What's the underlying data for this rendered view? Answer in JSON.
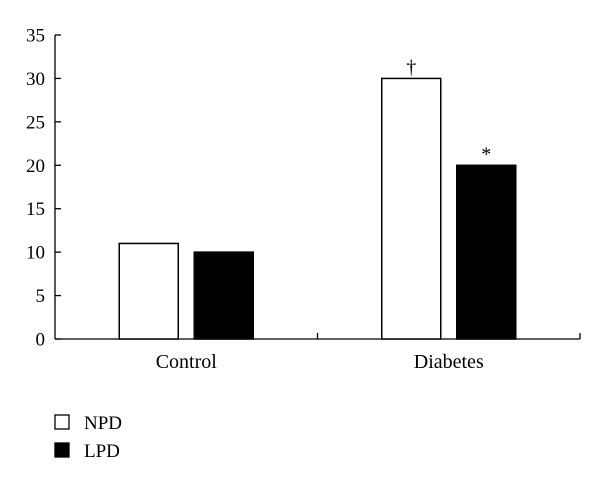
{
  "chart_data": {
    "type": "bar",
    "title": "",
    "xlabel": "",
    "ylabel": "",
    "categories": [
      "Control",
      "Diabetes"
    ],
    "series": [
      {
        "name": "NPD",
        "values": [
          11,
          30
        ],
        "color": "#ffffff",
        "stroke": "#000000"
      },
      {
        "name": "LPD",
        "values": [
          10,
          20
        ],
        "color": "#000000",
        "stroke": "#000000"
      }
    ],
    "annotations": [
      {
        "category": "Diabetes",
        "series": "NPD",
        "text": "†"
      },
      {
        "category": "Diabetes",
        "series": "LPD",
        "text": "*"
      }
    ],
    "ylim": [
      0,
      35
    ],
    "yticks": [
      0,
      5,
      10,
      15,
      20,
      25,
      30,
      35
    ],
    "grid": false,
    "legend": {
      "placement": "bottom-left"
    }
  }
}
